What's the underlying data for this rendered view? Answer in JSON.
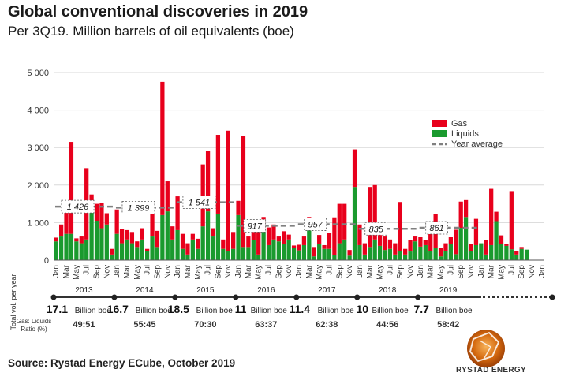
{
  "title": "Global conventional discoveries in 2019",
  "subtitle": "Per 3Q19. Million barrels of oil equivalents (boe)",
  "source": "Source: Rystad Energy ECube, October 2019",
  "logo_text": "RYSTAD ENERGY",
  "colors": {
    "gas": "#e8001c",
    "liquids": "#1a9a2e",
    "average": "#808080",
    "grid": "#d8d8d8"
  },
  "chart_data": {
    "type": "bar",
    "stacked": true,
    "ylim": [
      0,
      5000
    ],
    "yticks": [
      "0",
      "1 000",
      "2 000",
      "3 000",
      "4 000",
      "5 000"
    ],
    "ytick_values": [
      0,
      1000,
      2000,
      3000,
      4000,
      5000
    ],
    "x_tick_labels": [
      "Jan",
      "Mar",
      "May",
      "Jul",
      "Sep",
      "Nov"
    ],
    "grid": true,
    "legend_position": "right",
    "series": [
      {
        "name": "Gas",
        "values": [
          100,
          300,
          600,
          2450,
          80,
          200,
          1900,
          250,
          450,
          680,
          300,
          150,
          650,
          380,
          250,
          300,
          150,
          300,
          50,
          600,
          430,
          3550,
          800,
          350,
          900,
          400,
          300,
          150,
          270,
          1650,
          1600,
          200,
          2100,
          250,
          3200,
          450,
          380,
          2950,
          300,
          400,
          800,
          350,
          470,
          400,
          150,
          350,
          130,
          60,
          150,
          250,
          350,
          250,
          250,
          100,
          430,
          1000,
          1050,
          950,
          150,
          1000,
          550,
          300,
          1600,
          1450,
          550,
          380,
          250,
          300,
          1300,
          150,
          300,
          150,
          250,
          130,
          450,
          900,
          230,
          200,
          180,
          650,
          700,
          450,
          170,
          700,
          0,
          380,
          1500,
          250,
          230,
          50,
          1550,
          100,
          50,
          0,
          0,
          0,
          0
        ]
      },
      {
        "name": "Liquids",
        "values": [
          500,
          650,
          700,
          700,
          500,
          450,
          550,
          1500,
          1050,
          850,
          950,
          150,
          700,
          450,
          550,
          450,
          350,
          550,
          250,
          650,
          350,
          1200,
          1300,
          550,
          800,
          300,
          150,
          550,
          300,
          900,
          1300,
          650,
          1240,
          300,
          250,
          300,
          1200,
          350,
          350,
          530,
          150,
          800,
          400,
          550,
          500,
          420,
          550,
          330,
          260,
          400,
          800,
          100,
          420,
          300,
          300,
          140,
          450,
          550,
          120,
          1950,
          400,
          150,
          350,
          550,
          380,
          270,
          300,
          150,
          250,
          150,
          230,
          500,
          360,
          400,
          250,
          330,
          100,
          250,
          430,
          160,
          860,
          1150,
          250,
          400,
          450,
          150,
          400,
          1040,
          430,
          380,
          290,
          150,
          300,
          280,
          0,
          0,
          0
        ]
      },
      {
        "name": "Year average"
      }
    ],
    "year_averages": [
      {
        "year": "2013",
        "label": "1 426",
        "value": 1426
      },
      {
        "year": "2014",
        "label": "1 399",
        "value": 1399
      },
      {
        "year": "2015",
        "label": "1 541",
        "value": 1541
      },
      {
        "year": "2016",
        "label": "917",
        "value": 917
      },
      {
        "year": "2017",
        "label": "957",
        "value": 957
      },
      {
        "year": "2018",
        "label": "835",
        "value": 835
      },
      {
        "year": "2019",
        "label": "861",
        "value": 861
      }
    ],
    "bottom_table": {
      "row_label": "Total vol. per year",
      "ratio_label": "Gas: Liquids Ratio (%)",
      "years": [
        "2013",
        "2014",
        "2015",
        "2016",
        "2017",
        "2018",
        "2019"
      ],
      "totals": [
        {
          "number": "17.1",
          "unit": "Billion boe"
        },
        {
          "number": "16.7",
          "unit": "Billion boe"
        },
        {
          "number": "18.5",
          "unit": "Billion boe"
        },
        {
          "number": "11",
          "unit": "Billion boe"
        },
        {
          "number": "11.4",
          "unit": "Billion boe"
        },
        {
          "number": "10",
          "unit": "Billion boe"
        },
        {
          "number": "7.7",
          "unit": "Billion boe"
        }
      ],
      "ratios": [
        "49:51",
        "55:45",
        "70:30",
        "63:37",
        "62:38",
        "44:56",
        "58:42"
      ]
    }
  }
}
